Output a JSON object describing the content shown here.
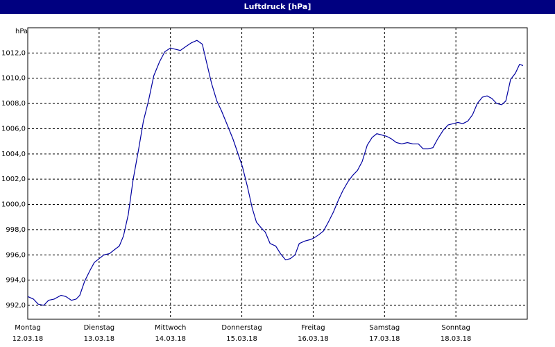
{
  "chart_data": {
    "type": "line",
    "title": "Luftdruck [hPa]",
    "y_label": "hPa",
    "x": [
      0,
      1.9,
      3.5,
      5.4,
      7.0,
      8.9,
      11.2,
      12.8,
      14.7,
      16.3,
      17.5,
      19.1,
      21.0,
      22.4,
      24.0,
      25.6,
      27.5,
      29.1,
      30.8,
      32.2,
      33.8,
      35.4,
      37.3,
      38.9,
      40.6,
      42.4,
      44.3,
      46.1,
      48.0,
      49.6,
      51.3,
      53.1,
      55.0,
      56.9,
      58.7,
      60.1,
      61.8,
      63.6,
      65.2,
      67.1,
      69.0,
      70.6,
      72.2,
      73.9,
      75.5,
      76.9,
      78.3,
      79.9,
      81.5,
      83.4,
      85.0,
      86.7,
      88.3,
      89.9,
      91.3,
      93.2,
      94.8,
      96.0,
      97.9,
      99.5,
      101.1,
      102.8,
      104.4,
      106.0,
      107.7,
      109.3,
      110.9,
      112.5,
      114.2,
      115.8,
      117.4,
      119.1,
      120.7,
      122.3,
      124.0,
      125.8,
      127.7,
      129.5,
      131.4,
      133.0,
      134.7,
      136.3,
      137.9,
      139.8,
      141.4,
      143.1,
      144.7,
      146.3,
      148.0,
      149.6,
      151.2,
      152.9,
      154.5,
      156.1,
      157.7,
      159.4,
      160.8,
      162.4,
      164.0,
      165.4,
      166.6
    ],
    "series": [
      {
        "name": "Luftdruck",
        "color": "#0000a0",
        "values": [
          992.7,
          992.5,
          992.1,
          992.0,
          992.4,
          992.5,
          992.8,
          992.7,
          992.4,
          992.5,
          992.8,
          993.9,
          994.8,
          995.4,
          995.7,
          996.0,
          996.1,
          996.4,
          996.7,
          997.5,
          999.2,
          1001.9,
          1004.4,
          1006.6,
          1008.2,
          1010.2,
          1011.3,
          1012.1,
          1012.4,
          1012.3,
          1012.2,
          1012.5,
          1012.8,
          1013.0,
          1012.7,
          1011.3,
          1009.6,
          1008.2,
          1007.4,
          1006.3,
          1005.2,
          1004.1,
          1003.0,
          1001.4,
          999.7,
          998.6,
          998.2,
          997.8,
          996.9,
          996.7,
          996.1,
          995.6,
          995.7,
          996.0,
          996.9,
          997.1,
          997.2,
          997.3,
          997.6,
          997.9,
          998.6,
          999.4,
          1000.3,
          1001.1,
          1001.8,
          1002.3,
          1002.7,
          1003.4,
          1004.7,
          1005.3,
          1005.6,
          1005.5,
          1005.4,
          1005.2,
          1004.9,
          1004.8,
          1004.9,
          1004.8,
          1004.8,
          1004.4,
          1004.4,
          1004.5,
          1005.2,
          1005.9,
          1006.3,
          1006.4,
          1006.5,
          1006.4,
          1006.6,
          1007.1,
          1008.0,
          1008.5,
          1008.6,
          1008.4,
          1008.0,
          1007.9,
          1008.2,
          1009.9,
          1010.4,
          1011.1,
          1011.0
        ]
      }
    ],
    "xlim": [
      0,
      168
    ],
    "xticks": [
      {
        "value": 0,
        "label": "Montag"
      },
      {
        "value": 24,
        "label": "Dienstag"
      },
      {
        "value": 48,
        "label": "Mittwoch"
      },
      {
        "value": 72,
        "label": "Donnerstag"
      },
      {
        "value": 96,
        "label": "Freitag"
      },
      {
        "value": 120,
        "label": "Samstag"
      },
      {
        "value": 144,
        "label": "Sonntag"
      }
    ],
    "xtick_dates": [
      "12.03.18",
      "13.03.18",
      "14.03.18",
      "15.03.18",
      "16.03.18",
      "17.03.18",
      "18.03.18"
    ],
    "ylim": [
      990.9,
      1014.0
    ],
    "yticks": [
      {
        "value": 992,
        "label": "992,0"
      },
      {
        "value": 994,
        "label": "994,0"
      },
      {
        "value": 996,
        "label": "996,0"
      },
      {
        "value": 998,
        "label": "998,0"
      },
      {
        "value": 1000,
        "label": "1000,0"
      },
      {
        "value": 1002,
        "label": "1002,0"
      },
      {
        "value": 1004,
        "label": "1004,0"
      },
      {
        "value": 1006,
        "label": "1006,0"
      },
      {
        "value": 1008,
        "label": "1008,0"
      },
      {
        "value": 1010,
        "label": "1010,0"
      },
      {
        "value": 1012,
        "label": "1012,0"
      }
    ],
    "grid": true
  }
}
